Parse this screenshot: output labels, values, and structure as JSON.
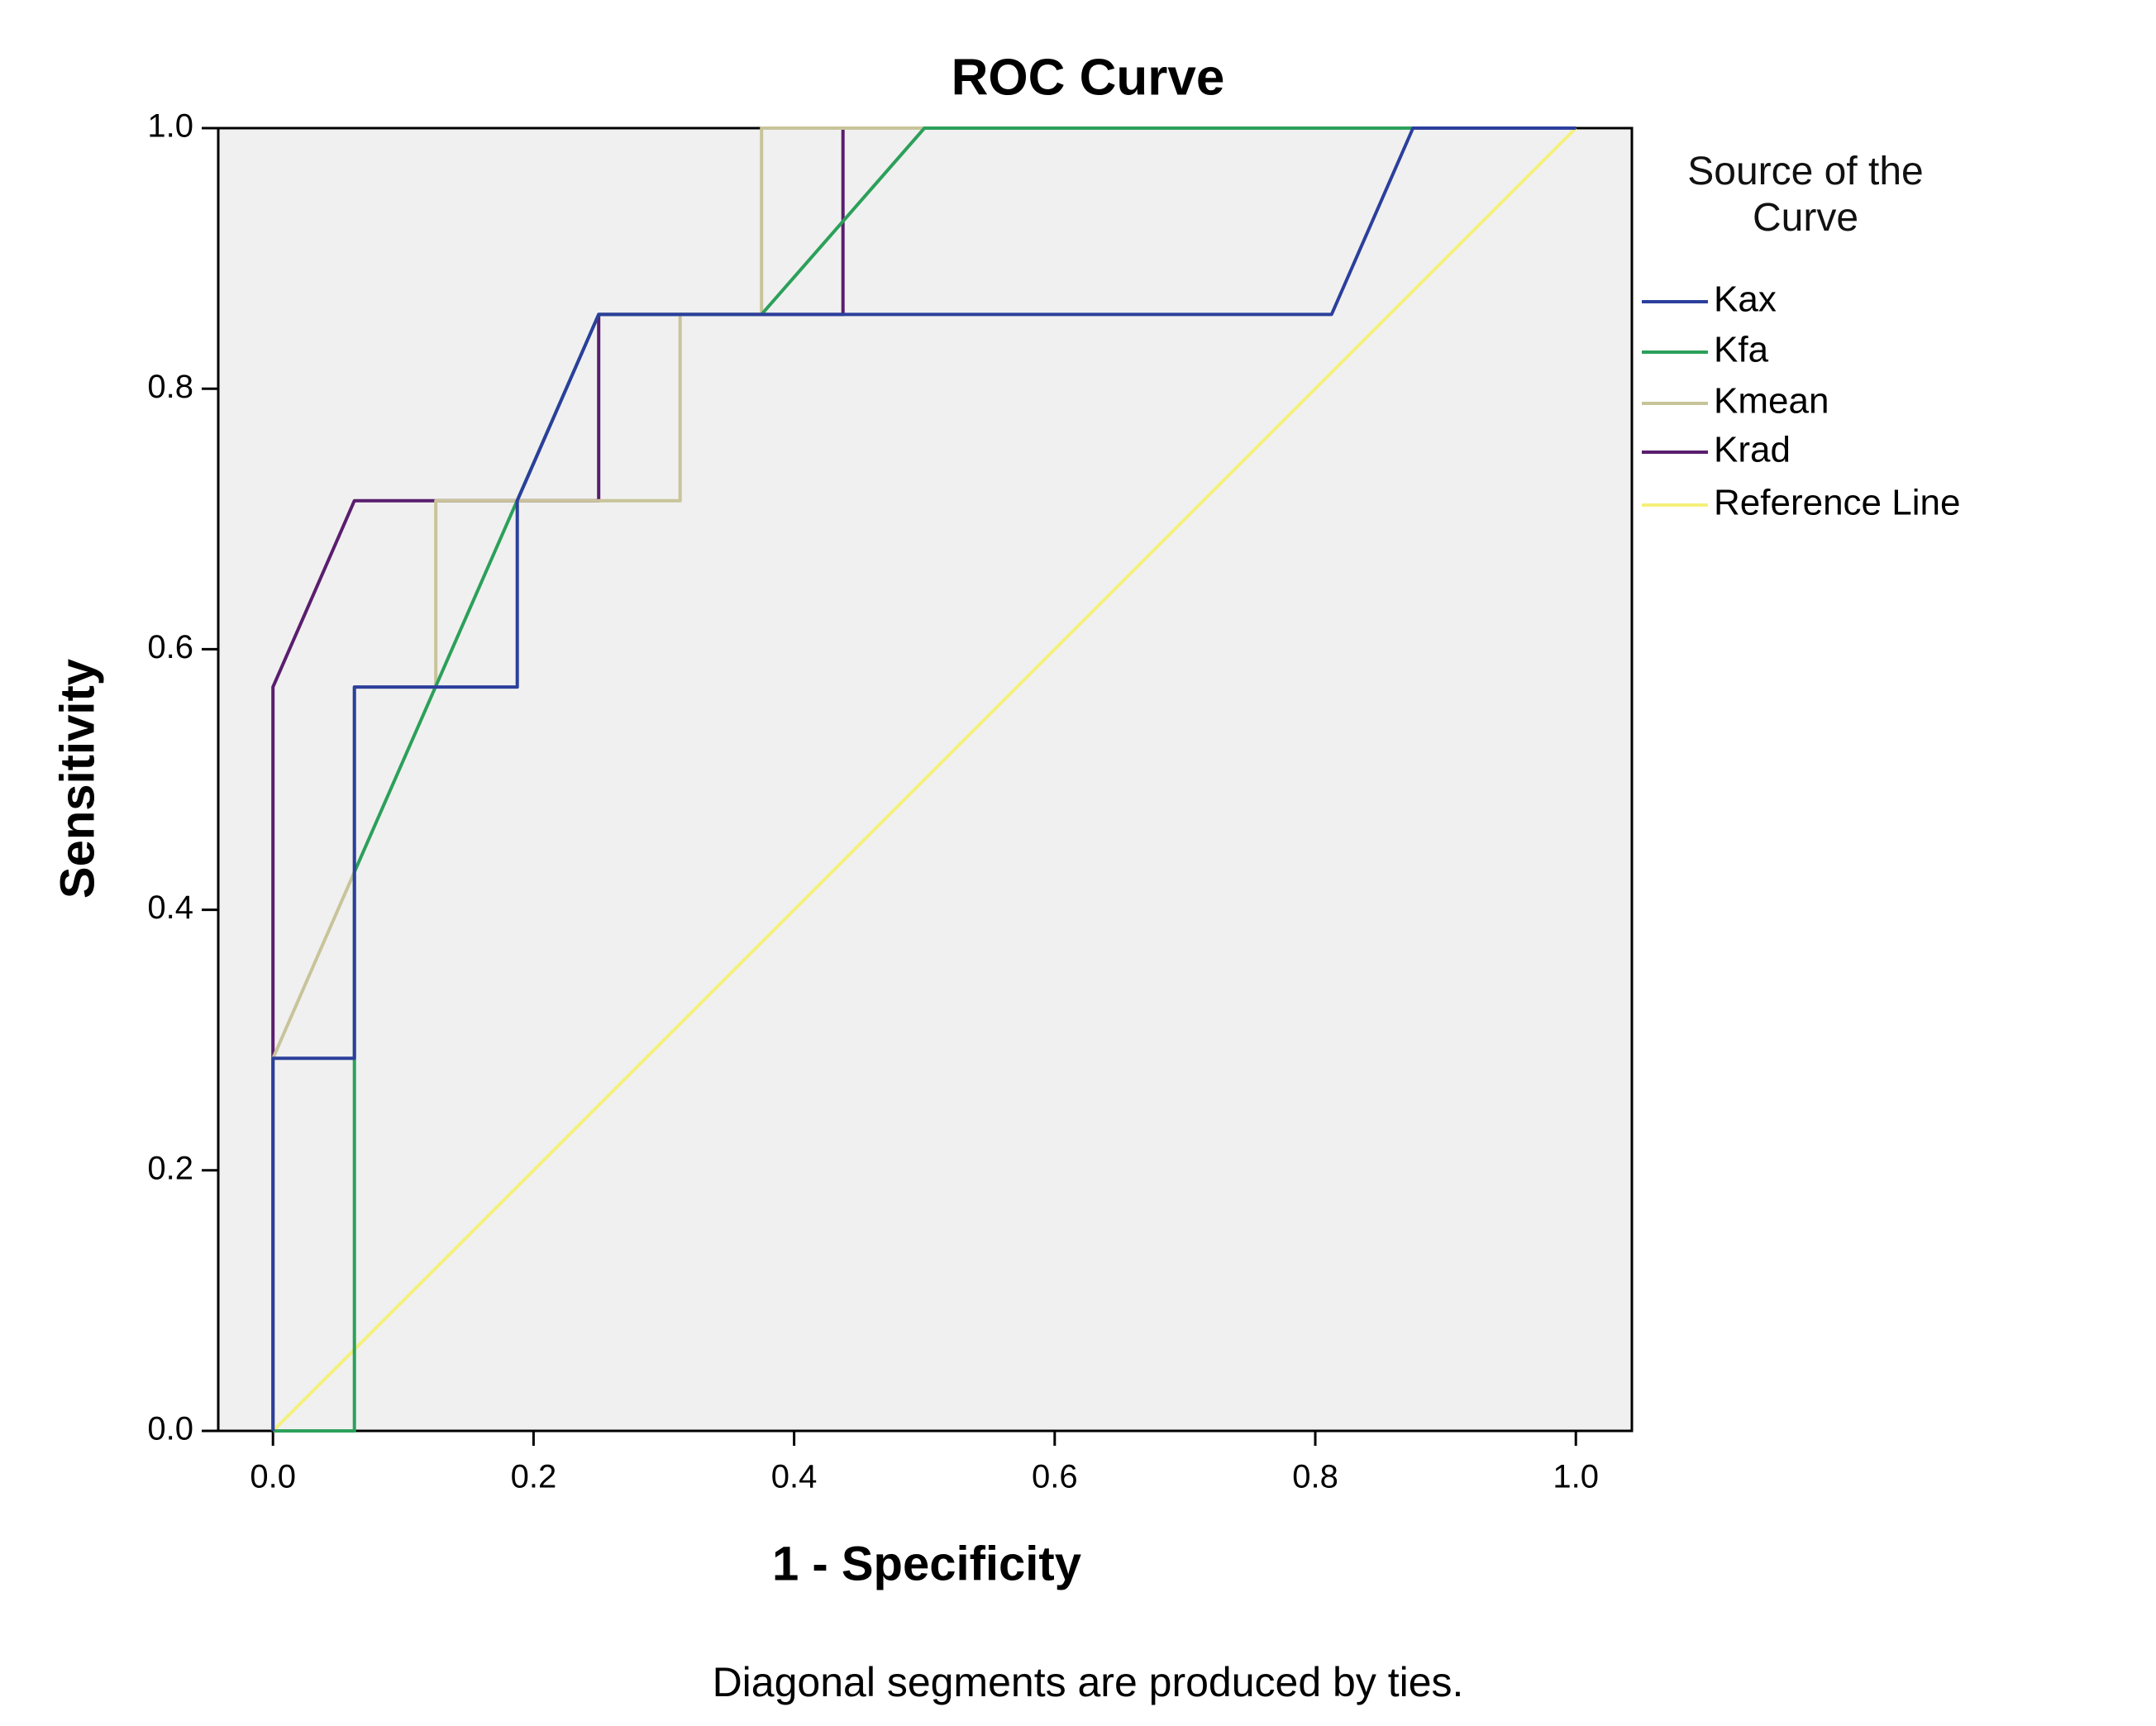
{
  "chart_data": {
    "type": "line",
    "title": "ROC Curve",
    "x_label": "1 - Specificity",
    "y_label": "Sensitivity",
    "legend_title": "Source of the Curve",
    "legend_position": "right",
    "footnote": "Diagonal segments are produced by ties.",
    "xlim": [
      -0.042,
      1.043
    ],
    "ylim": [
      0,
      1
    ],
    "xticks": [
      {
        "value": 0,
        "label": "0.0"
      },
      {
        "value": 0.2,
        "label": "0.2"
      },
      {
        "value": 0.4,
        "label": "0.4"
      },
      {
        "value": 0.6,
        "label": "0.6"
      },
      {
        "value": 0.8,
        "label": "0.8"
      },
      {
        "value": 1,
        "label": "1.0"
      }
    ],
    "yticks": [
      {
        "value": 0,
        "label": "0.0"
      },
      {
        "value": 0.2,
        "label": "0.2"
      },
      {
        "value": 0.4,
        "label": "0.4"
      },
      {
        "value": 0.6,
        "label": "0.6"
      },
      {
        "value": 0.8,
        "label": "0.8"
      },
      {
        "value": 1,
        "label": "1.0"
      }
    ],
    "grid": false,
    "series": [
      {
        "name": "Kax",
        "color": "#2b3f9c",
        "x": [
          0,
          0,
          0.0625,
          0.0625,
          0.1875,
          0.1875,
          0.25,
          0.8125,
          0.875,
          1
        ],
        "values": [
          0,
          0.286,
          0.286,
          0.571,
          0.571,
          0.714,
          0.857,
          0.857,
          1,
          1
        ]
      },
      {
        "name": "Kfa",
        "color": "#2ca05a",
        "x": [
          0,
          0.0625,
          0.0625,
          0.25,
          0.375,
          0.5,
          1
        ],
        "values": [
          0,
          0,
          0.429,
          0.857,
          0.857,
          1,
          1
        ]
      },
      {
        "name": "Kmean",
        "color": "#c8c49a",
        "x": [
          0,
          0,
          0.0625,
          0.0625,
          0.125,
          0.125,
          0.3125,
          0.3125,
          0.375,
          0.375,
          1
        ],
        "values": [
          0,
          0.286,
          0.429,
          0.571,
          0.571,
          0.714,
          0.714,
          0.857,
          0.857,
          1,
          1
        ]
      },
      {
        "name": "Krad",
        "color": "#5a1e6e",
        "x": [
          0,
          0,
          0.0625,
          0.25,
          0.25,
          0.4375,
          0.4375,
          1
        ],
        "values": [
          0,
          0.571,
          0.714,
          0.714,
          0.857,
          0.857,
          1,
          1
        ]
      },
      {
        "name": "Reference Line",
        "color": "#f5f07a",
        "x": [
          0,
          1
        ],
        "values": [
          0,
          1
        ]
      }
    ]
  }
}
